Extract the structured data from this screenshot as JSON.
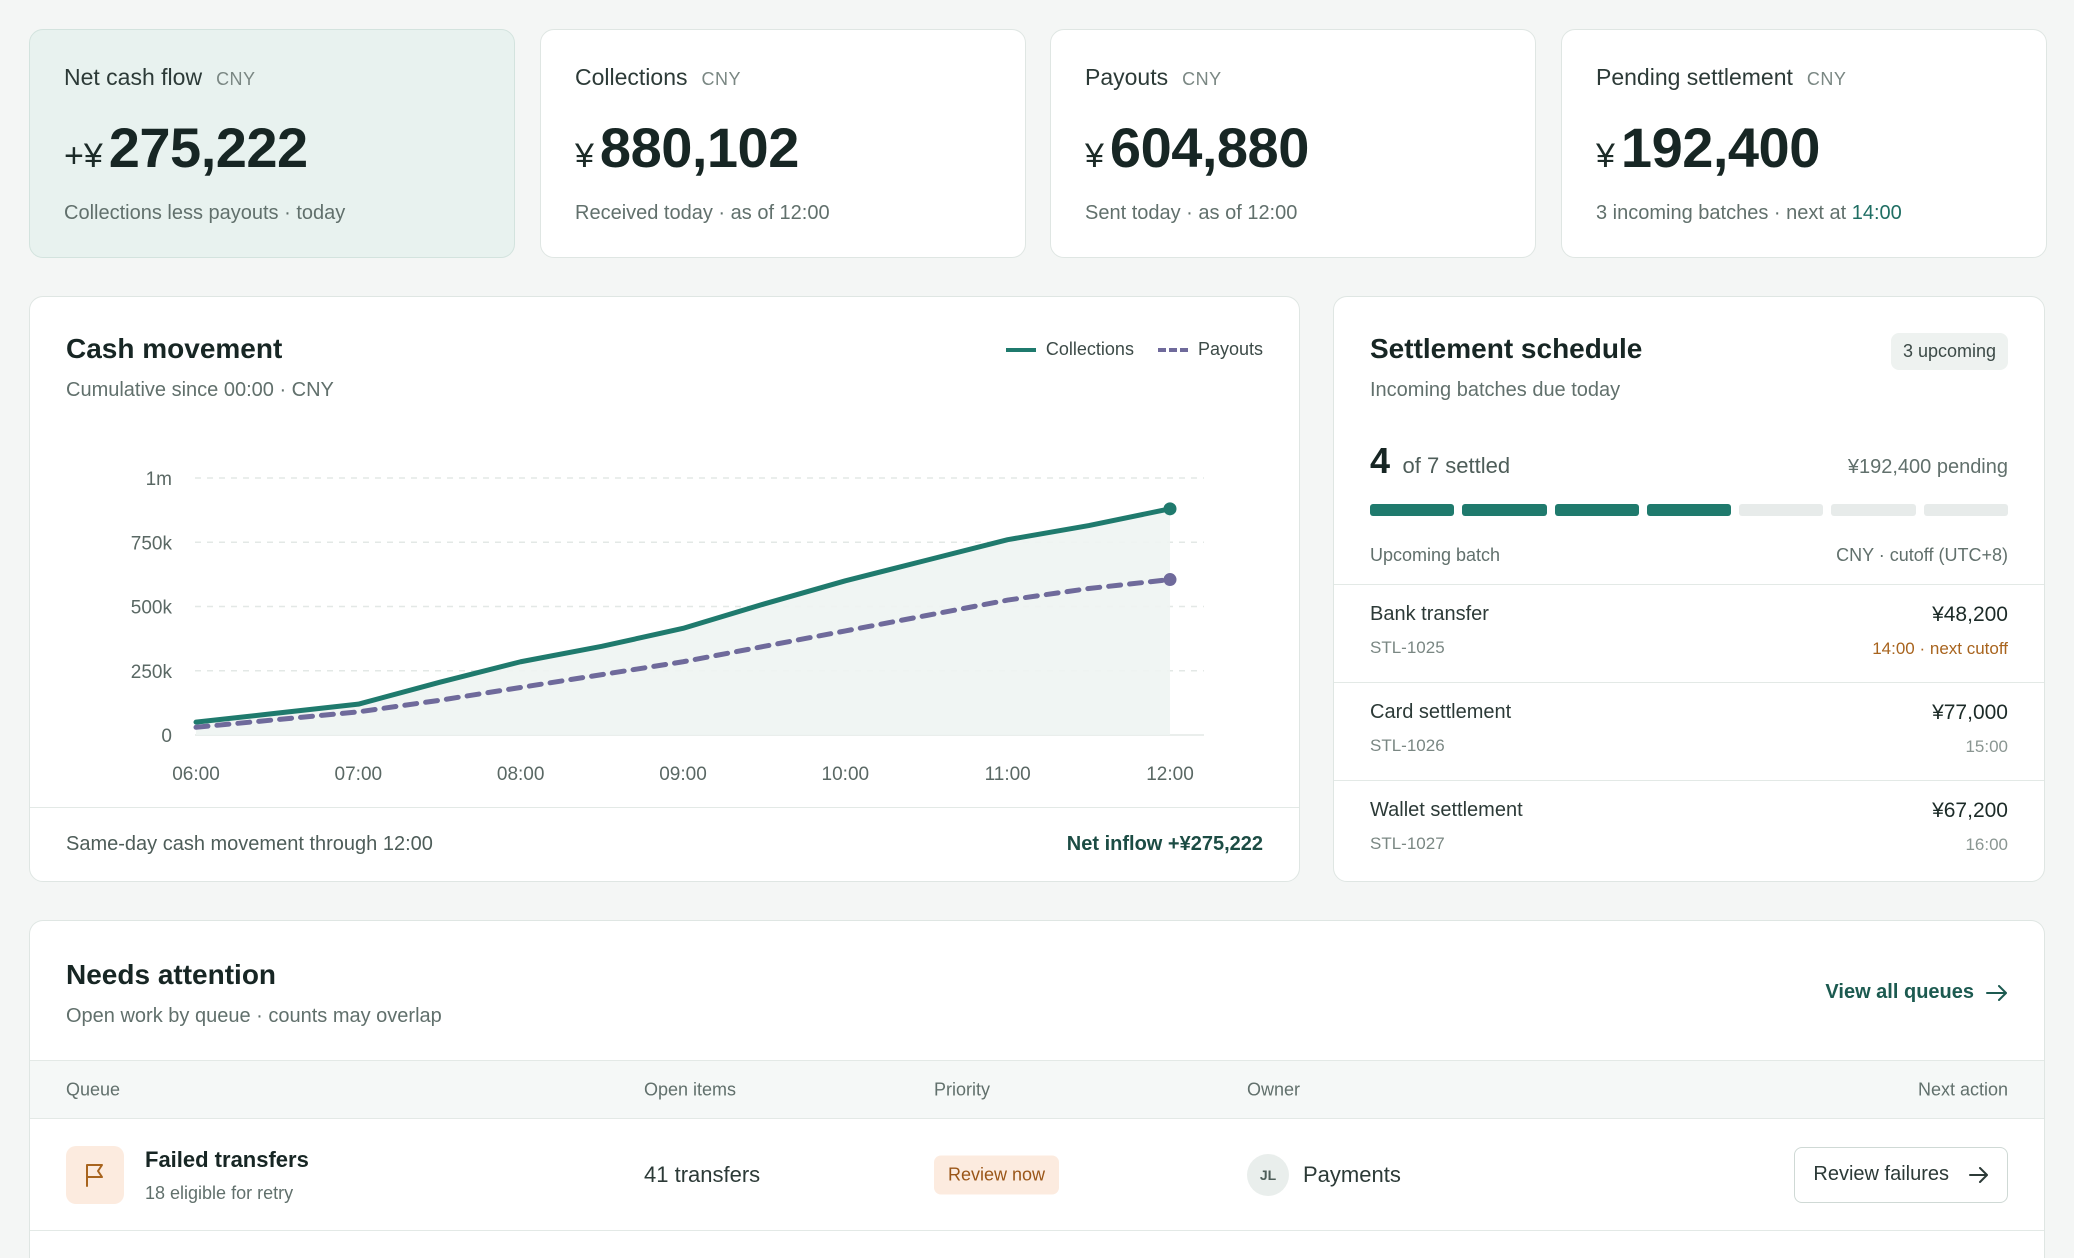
{
  "kpis": [
    {
      "title": "Net cash flow",
      "unit": "CNY",
      "prefix": "+¥",
      "value": "275,222",
      "note": "Collections less payouts · today",
      "note_highlight": ""
    },
    {
      "title": "Collections",
      "unit": "CNY",
      "prefix": "¥",
      "value": "880,102",
      "note": "Received today · as of 12:00",
      "note_highlight": ""
    },
    {
      "title": "Payouts",
      "unit": "CNY",
      "prefix": "¥",
      "value": "604,880",
      "note": "Sent today · as of 12:00",
      "note_highlight": ""
    },
    {
      "title": "Pending settlement",
      "unit": "CNY",
      "prefix": "¥",
      "value": "192,400",
      "note": "3 incoming batches · next at ",
      "note_highlight": "14:00"
    }
  ],
  "cash_movement": {
    "title": "Cash movement",
    "subtitle": "Cumulative since 00:00 · CNY",
    "footer_left": "Same-day cash movement through 12:00",
    "footer_right": "Net inflow +¥275,222"
  },
  "chart_data": {
    "type": "line",
    "x": [
      "06:00",
      "06:30",
      "07:00",
      "07:30",
      "08:00",
      "08:30",
      "09:00",
      "09:30",
      "10:00",
      "10:30",
      "11:00",
      "11:30",
      "12:00"
    ],
    "series": [
      {
        "name": "Collections",
        "color": "#1f7a6d",
        "style": "solid",
        "values": [
          50000,
          85000,
          120000,
          205000,
          285000,
          345000,
          415000,
          510000,
          600000,
          680000,
          760000,
          815000,
          880102
        ]
      },
      {
        "name": "Payouts",
        "color": "#6f6a9b",
        "style": "dashed",
        "values": [
          30000,
          60000,
          90000,
          135000,
          185000,
          235000,
          285000,
          345000,
          405000,
          465000,
          525000,
          570000,
          604880
        ]
      }
    ],
    "x_ticks": [
      "06:00",
      "07:00",
      "08:00",
      "09:00",
      "10:00",
      "11:00",
      "12:00"
    ],
    "y_ticks": [
      {
        "v": 0,
        "label": "0"
      },
      {
        "v": 250000,
        "label": "250k"
      },
      {
        "v": 500000,
        "label": "500k"
      },
      {
        "v": 750000,
        "label": "750k"
      },
      {
        "v": 1000000,
        "label": "1m"
      }
    ],
    "ylim": [
      0,
      1000000
    ],
    "grid": true,
    "legend": "top-right",
    "area_fill": "Collections"
  },
  "settlement": {
    "title": "Settlement schedule",
    "subtitle": "Incoming batches due today",
    "badge": "3 upcoming",
    "settled_count": "4",
    "settled_of": "of 7 settled",
    "settled_fraction": 0.5714,
    "segments_total": 7,
    "segments_done": 4,
    "pending": "¥192,400 pending",
    "list_header_left": "Upcoming batch",
    "list_header_right": "CNY · cutoff (UTC+8)",
    "batches": [
      {
        "name": "Bank transfer",
        "id": "STL-1025",
        "amount": "¥48,200",
        "time": "14:00 · next cutoff",
        "warn": true
      },
      {
        "name": "Card settlement",
        "id": "STL-1026",
        "amount": "¥77,000",
        "time": "15:00",
        "warn": false
      },
      {
        "name": "Wallet settlement",
        "id": "STL-1027",
        "amount": "¥67,200",
        "time": "16:00",
        "warn": false
      }
    ]
  },
  "attention": {
    "title": "Needs attention",
    "subtitle": "Open work by queue · counts may overlap",
    "view_all": "View all queues",
    "columns": [
      "Queue",
      "Open items",
      "Priority",
      "Owner",
      "Next action"
    ],
    "rows": [
      {
        "queue": "Failed transfers",
        "sub": "18 eligible for retry",
        "open": "41 transfers",
        "priority": "Review now",
        "owner_initials": "JL",
        "owner": "Payments",
        "action": "Review failures"
      }
    ]
  }
}
